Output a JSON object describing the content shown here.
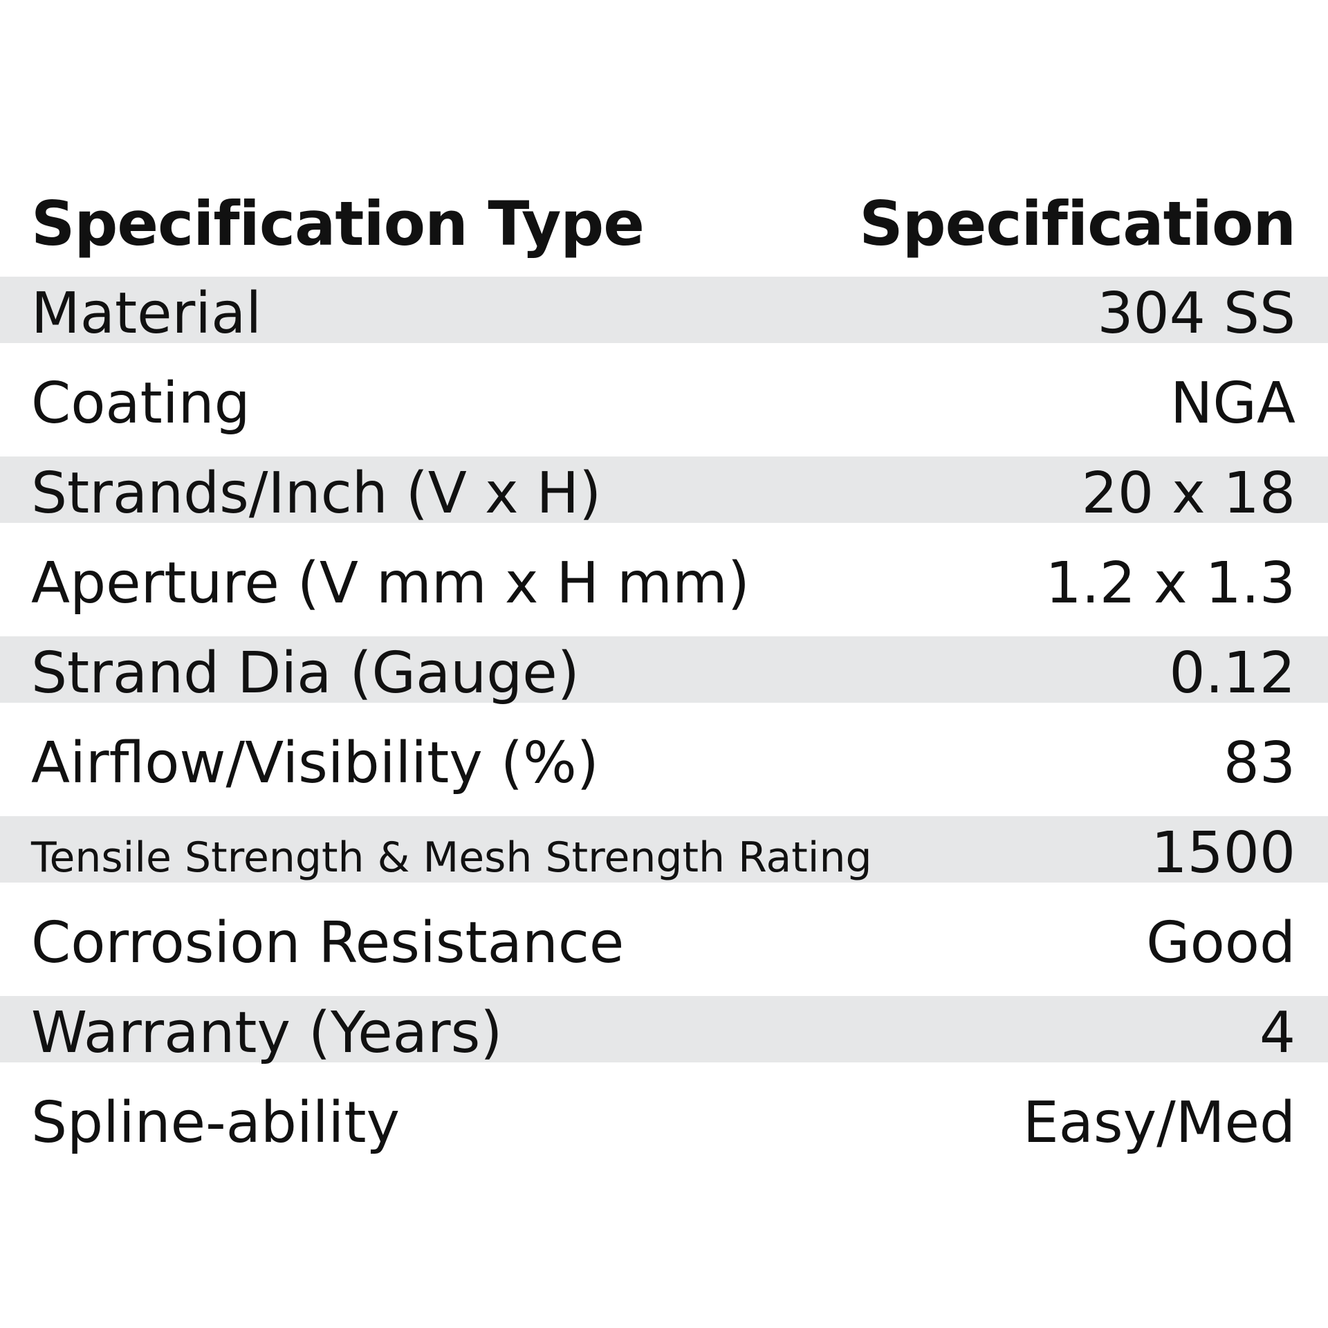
{
  "header": {
    "type_label": "Specification Type",
    "spec_label": "Specification"
  },
  "rows": [
    {
      "label": "Material",
      "value": "304 SS"
    },
    {
      "label": "Coating",
      "value": "NGA"
    },
    {
      "label": "Strands/Inch (V x H)",
      "value": "20 x 18"
    },
    {
      "label": "Aperture (V mm x H mm)",
      "value": "1.2 x 1.3"
    },
    {
      "label": "Strand Dia (Gauge)",
      "value": "0.12"
    },
    {
      "label": "Airflow/Visibility (%)",
      "value": "83"
    },
    {
      "label": "Tensile Strength & Mesh Strength Rating",
      "value": "1500"
    },
    {
      "label": "Corrosion Resistance",
      "value": "Good"
    },
    {
      "label": "Warranty (Years)",
      "value": "4"
    },
    {
      "label": "Spline-ability",
      "value": "Easy/Med"
    }
  ],
  "colors": {
    "row_band": "#e6e7e8",
    "text": "#111111",
    "background": "#ffffff"
  }
}
